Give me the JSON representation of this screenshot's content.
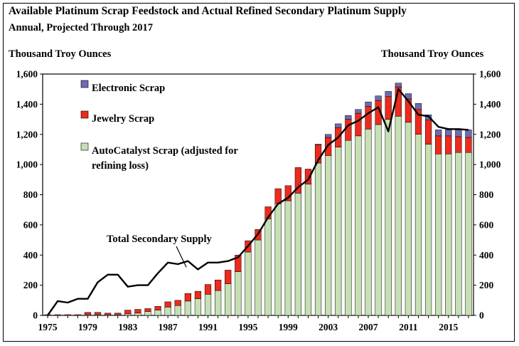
{
  "chart_data": {
    "type": "bar",
    "title": "Available Platinum Scrap Feedstock and Actual Refined Secondary Platinum Supply",
    "subtitle": "Annual, Projected Through 2017",
    "ylabel_left": "Thousand Troy Ounces",
    "ylabel_right": "Thousand Troy Ounces",
    "ylim": [
      0,
      1600
    ],
    "yticks": [
      "0",
      "200",
      "400",
      "600",
      "800",
      "1,000",
      "1,200",
      "1,400",
      "1,600"
    ],
    "xtick_labels": [
      "1975",
      "1979",
      "1983",
      "1987",
      "1991",
      "1995",
      "1999",
      "2003",
      "2007",
      "2011",
      "2015"
    ],
    "stacked": true,
    "grid": false,
    "categories": [
      1975,
      1976,
      1977,
      1978,
      1979,
      1980,
      1981,
      1982,
      1983,
      1984,
      1985,
      1986,
      1987,
      1988,
      1989,
      1990,
      1991,
      1992,
      1993,
      1994,
      1995,
      1996,
      1997,
      1998,
      1999,
      2000,
      2001,
      2002,
      2003,
      2004,
      2005,
      2006,
      2007,
      2008,
      2009,
      2010,
      2011,
      2012,
      2013,
      2014,
      2015,
      2016,
      2017
    ],
    "series": [
      {
        "name": "AutoCatalyst Scrap (adjusted for refining loss)",
        "color": "#c6dfb4",
        "values": [
          0,
          0,
          0,
          0,
          5,
          5,
          5,
          5,
          10,
          15,
          25,
          35,
          55,
          65,
          95,
          110,
          140,
          165,
          210,
          290,
          420,
          500,
          640,
          740,
          760,
          810,
          870,
          1010,
          1060,
          1115,
          1160,
          1190,
          1235,
          1265,
          1300,
          1320,
          1280,
          1200,
          1135,
          1070,
          1070,
          1080,
          1080
        ]
      },
      {
        "name": "Jewelry Scrap",
        "color": "#ed2a1c",
        "values": [
          5,
          5,
          5,
          5,
          15,
          15,
          10,
          10,
          25,
          25,
          20,
          25,
          35,
          35,
          50,
          50,
          65,
          70,
          90,
          110,
          75,
          70,
          80,
          100,
          100,
          170,
          100,
          120,
          120,
          130,
          140,
          150,
          150,
          160,
          150,
          195,
          155,
          165,
          160,
          120,
          120,
          105,
          100
        ]
      },
      {
        "name": "Electronic Scrap",
        "color": "#6e6ab3",
        "values": [
          0,
          0,
          0,
          0,
          0,
          0,
          0,
          0,
          0,
          0,
          0,
          0,
          0,
          0,
          0,
          0,
          0,
          0,
          0,
          0,
          0,
          0,
          0,
          0,
          0,
          0,
          0,
          5,
          20,
          25,
          25,
          25,
          30,
          30,
          35,
          25,
          35,
          40,
          35,
          40,
          40,
          45,
          50
        ]
      }
    ],
    "line": {
      "name": "Total Secondary Supply",
      "color": "#000000",
      "values": [
        0,
        95,
        85,
        110,
        110,
        220,
        270,
        270,
        190,
        200,
        200,
        280,
        350,
        340,
        360,
        305,
        350,
        350,
        360,
        385,
        460,
        540,
        650,
        740,
        780,
        850,
        900,
        1030,
        1130,
        1180,
        1260,
        1290,
        1340,
        1380,
        1220,
        1500,
        1420,
        1330,
        1320,
        1250,
        1235,
        1235,
        1230
      ]
    },
    "legend": {
      "placement": "top-left",
      "entries": [
        "Electronic Scrap",
        "Jewelry Scrap",
        "AutoCatalyst Scrap (adjusted for refining loss)"
      ]
    },
    "annotation": "Total Secondary Supply"
  }
}
